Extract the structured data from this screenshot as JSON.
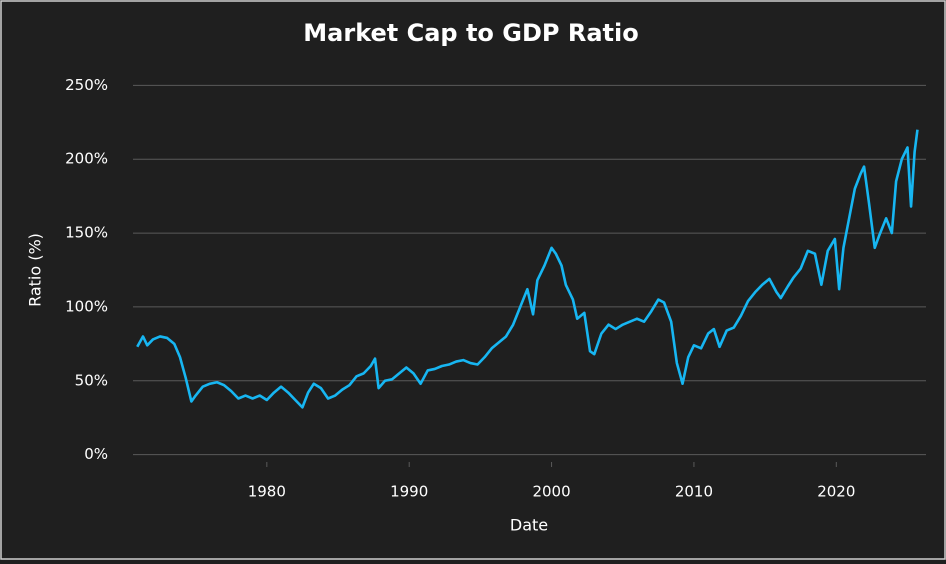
{
  "chart_data": {
    "type": "line",
    "title": "Market Cap to GDP Ratio",
    "xlabel": "Date",
    "ylabel": "Ratio (%)",
    "color": "#17b6f2",
    "grid": true,
    "x": [
      1970.9,
      1971.3,
      1971.6,
      1972.0,
      1972.5,
      1973.0,
      1973.5,
      1973.9,
      1974.3,
      1974.7,
      1975.0,
      1975.5,
      1976.0,
      1976.5,
      1977.0,
      1977.5,
      1978.0,
      1978.5,
      1979.0,
      1979.5,
      1980.0,
      1980.5,
      1981.0,
      1981.5,
      1982.0,
      1982.5,
      1982.9,
      1983.3,
      1983.8,
      1984.3,
      1984.8,
      1985.3,
      1985.8,
      1986.3,
      1986.8,
      1987.3,
      1987.6,
      1987.85,
      1988.3,
      1988.8,
      1989.3,
      1989.8,
      1990.3,
      1990.8,
      1991.3,
      1991.8,
      1992.3,
      1992.8,
      1993.3,
      1993.8,
      1994.3,
      1994.8,
      1995.3,
      1995.8,
      1996.3,
      1996.8,
      1997.3,
      1997.8,
      1998.3,
      1998.7,
      1999.0,
      1999.5,
      2000.0,
      2000.3,
      2000.7,
      2001.0,
      2001.5,
      2001.8,
      2002.3,
      2002.7,
      2003.0,
      2003.5,
      2004.0,
      2004.5,
      2005.0,
      2005.5,
      2006.0,
      2006.5,
      2007.0,
      2007.5,
      2007.9,
      2008.4,
      2008.8,
      2009.2,
      2009.6,
      2010.0,
      2010.5,
      2011.0,
      2011.4,
      2011.8,
      2012.3,
      2012.8,
      2013.3,
      2013.8,
      2014.3,
      2014.8,
      2015.3,
      2015.8,
      2016.1,
      2016.6,
      2017.0,
      2017.5,
      2018.0,
      2018.5,
      2018.95,
      2019.4,
      2019.9,
      2020.2,
      2020.5,
      2020.9,
      2021.3,
      2021.7,
      2021.95,
      2022.3,
      2022.7,
      2023.0,
      2023.5,
      2023.9,
      2024.2,
      2024.6,
      2025.0,
      2025.25,
      2025.5,
      2025.7
    ],
    "values": [
      73,
      80,
      74,
      78,
      80,
      79,
      75,
      66,
      52,
      36,
      40,
      46,
      48,
      49,
      47,
      43,
      38,
      40,
      38,
      40,
      37,
      42,
      46,
      42,
      37,
      32,
      42,
      48,
      45,
      38,
      40,
      44,
      47,
      53,
      55,
      60,
      65,
      45,
      50,
      51,
      55,
      59,
      55,
      48,
      57,
      58,
      60,
      61,
      63,
      64,
      62,
      61,
      66,
      72,
      76,
      80,
      88,
      100,
      112,
      95,
      118,
      128,
      140,
      136,
      128,
      115,
      105,
      92,
      96,
      70,
      68,
      82,
      88,
      85,
      88,
      90,
      92,
      90,
      97,
      105,
      103,
      90,
      62,
      48,
      66,
      74,
      72,
      82,
      85,
      73,
      84,
      86,
      94,
      104,
      110,
      115,
      119,
      110,
      106,
      114,
      120,
      126,
      138,
      136,
      115,
      138,
      146,
      112,
      140,
      160,
      180,
      190,
      195,
      170,
      140,
      148,
      160,
      150,
      185,
      200,
      208,
      168,
      205,
      220
    ],
    "xlim": [
      1970.6,
      2026.3
    ],
    "xticks": [
      1980,
      1990,
      2000,
      2010,
      2020
    ],
    "ylim": [
      -5,
      255
    ],
    "yticks": [
      {
        "value": 0,
        "label": "0%"
      },
      {
        "value": 50,
        "label": "50%"
      },
      {
        "value": 100,
        "label": "100%"
      },
      {
        "value": 150,
        "label": "150%"
      },
      {
        "value": 200,
        "label": "200%"
      },
      {
        "value": 250,
        "label": "250%"
      }
    ]
  }
}
